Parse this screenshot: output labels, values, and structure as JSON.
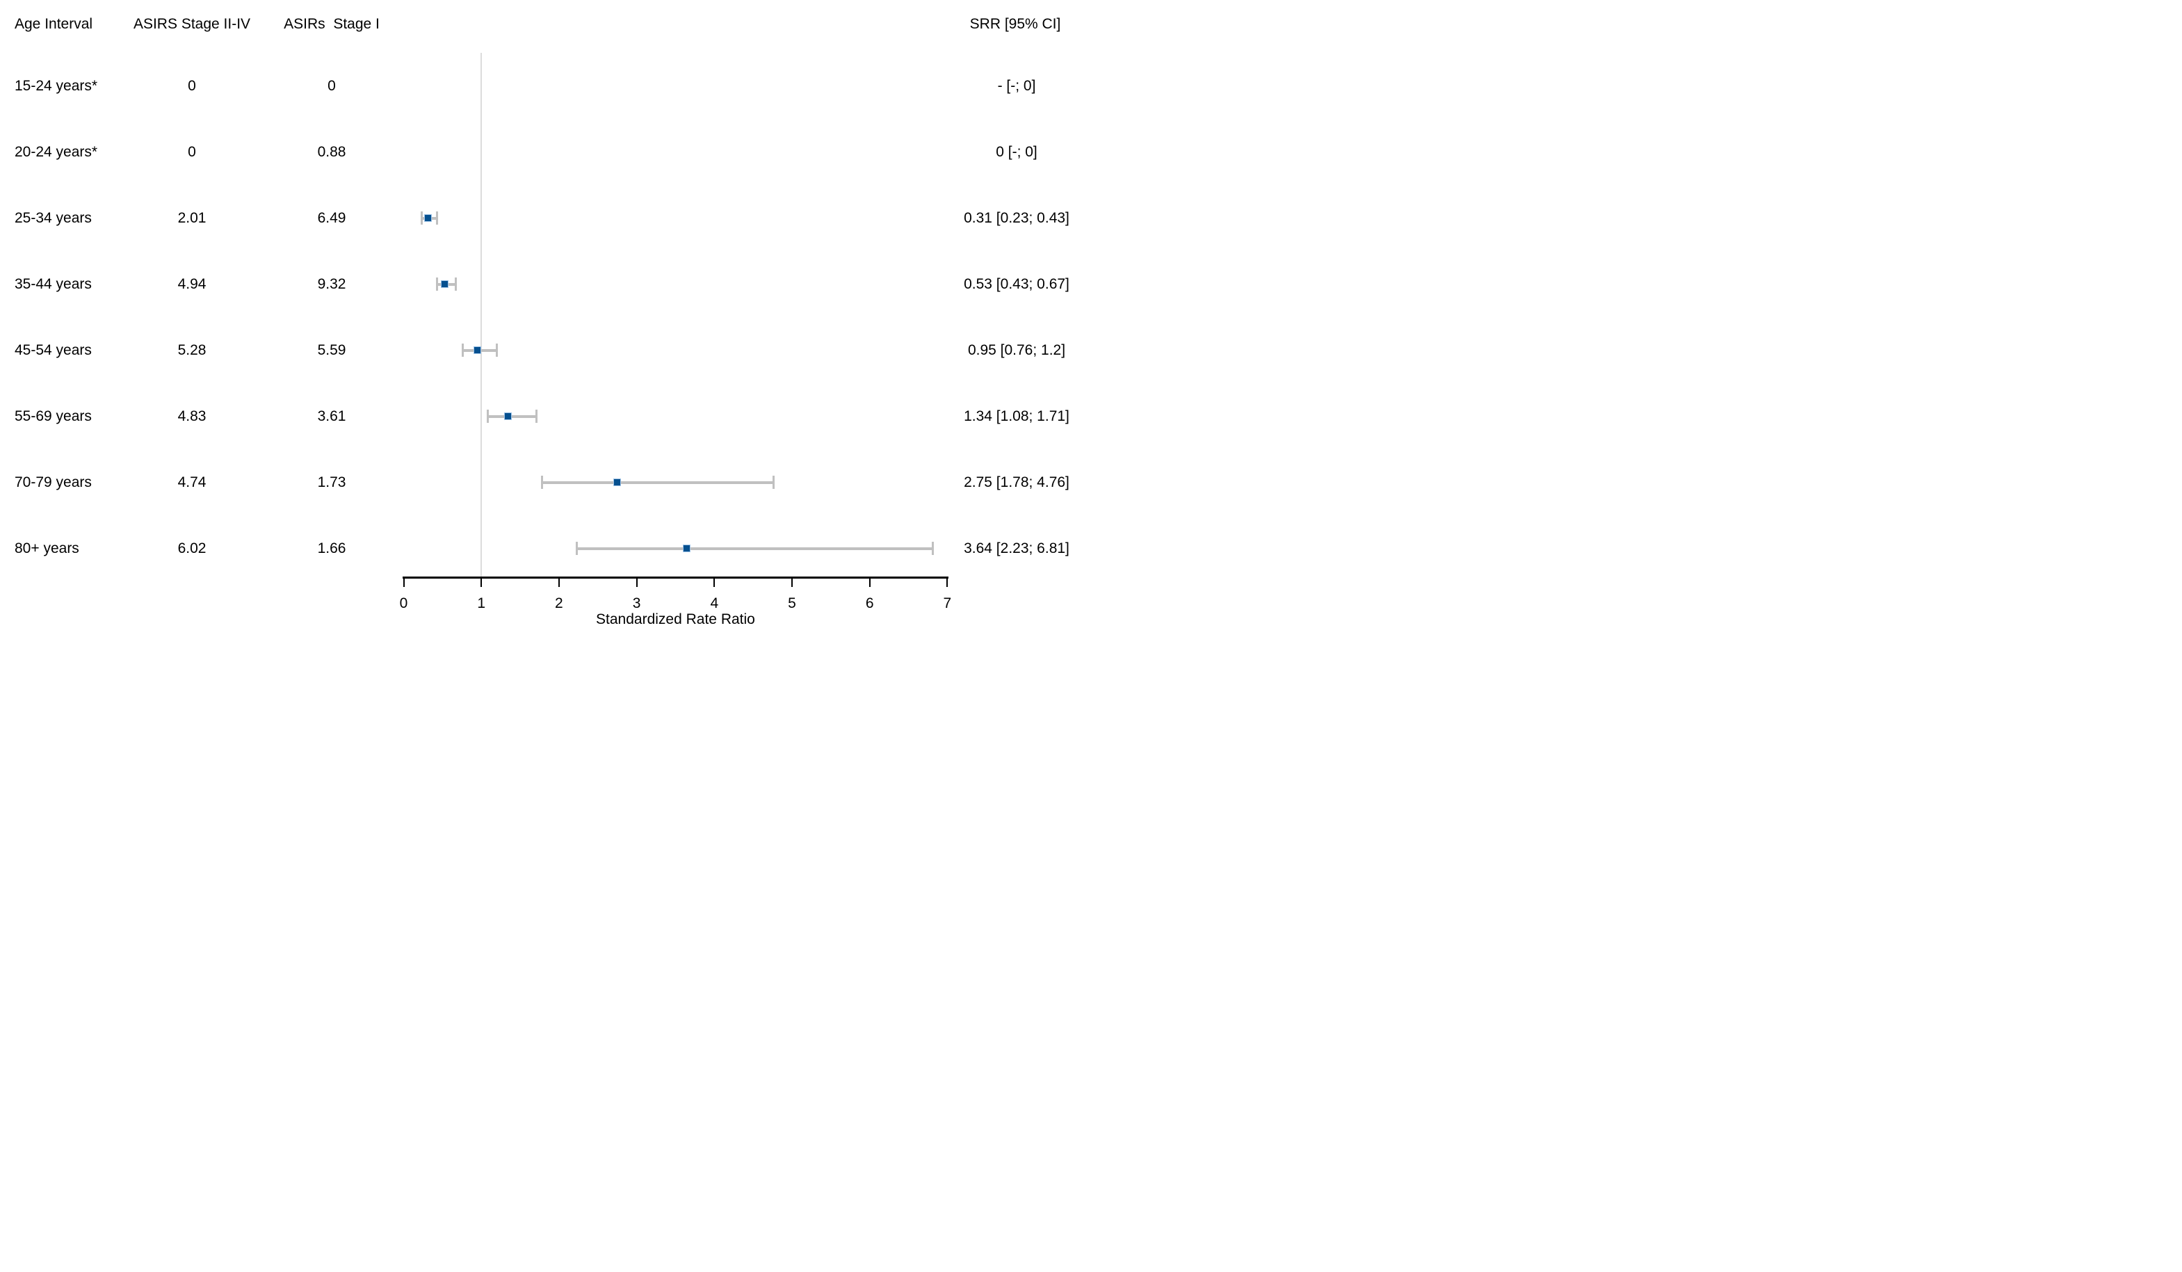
{
  "chart_data": {
    "type": "scatter",
    "variant": "forest_plot",
    "title": "",
    "xlabel": "Standardized Rate Ratio",
    "xlim": [
      0,
      7
    ],
    "x_ticks": [
      "0",
      "1",
      "2",
      "3",
      "4",
      "5",
      "6",
      "7"
    ],
    "reference_line_x": 1,
    "grid": "off",
    "columns": {
      "age": "Age Interval",
      "stage24": "ASIRS Stage II-IV",
      "stage1": "ASIRs  Stage I",
      "srr": "SRR [95% CI]"
    },
    "rows": [
      {
        "age": "15-24 years*",
        "stage24": "0",
        "stage1": "0",
        "srr": null,
        "ci_low": null,
        "ci_high": null,
        "srr_label": "- [-; 0]"
      },
      {
        "age": "20-24 years*",
        "stage24": "0",
        "stage1": "0.88",
        "srr": null,
        "ci_low": null,
        "ci_high": null,
        "srr_label": "0 [-; 0]"
      },
      {
        "age": "25-34 years",
        "stage24": "2.01",
        "stage1": "6.49",
        "srr": 0.31,
        "ci_low": 0.23,
        "ci_high": 0.43,
        "srr_label": "0.31 [0.23; 0.43]"
      },
      {
        "age": "35-44 years",
        "stage24": "4.94",
        "stage1": "9.32",
        "srr": 0.53,
        "ci_low": 0.43,
        "ci_high": 0.67,
        "srr_label": "0.53 [0.43; 0.67]"
      },
      {
        "age": "45-54 years",
        "stage24": "5.28",
        "stage1": "5.59",
        "srr": 0.95,
        "ci_low": 0.76,
        "ci_high": 1.2,
        "srr_label": "0.95 [0.76; 1.2]"
      },
      {
        "age": "55-69 years",
        "stage24": "4.83",
        "stage1": "3.61",
        "srr": 1.34,
        "ci_low": 1.08,
        "ci_high": 1.71,
        "srr_label": "1.34 [1.08; 1.71]"
      },
      {
        "age": "70-79 years",
        "stage24": "4.74",
        "stage1": "1.73",
        "srr": 2.75,
        "ci_low": 1.78,
        "ci_high": 4.76,
        "srr_label": "2.75 [1.78; 4.76]"
      },
      {
        "age": "80+ years",
        "stage24": "6.02",
        "stage1": "1.66",
        "srr": 3.64,
        "ci_low": 2.23,
        "ci_high": 6.81,
        "srr_label": "3.64 [2.23; 6.81]"
      }
    ]
  },
  "colors": {
    "marker_fill": "#06508f",
    "marker_border": "#a3c6e8",
    "ci_bar": "#c0c0c0",
    "reference_line": "#dcdcdc",
    "axis": "#000000",
    "text": "#000000"
  }
}
